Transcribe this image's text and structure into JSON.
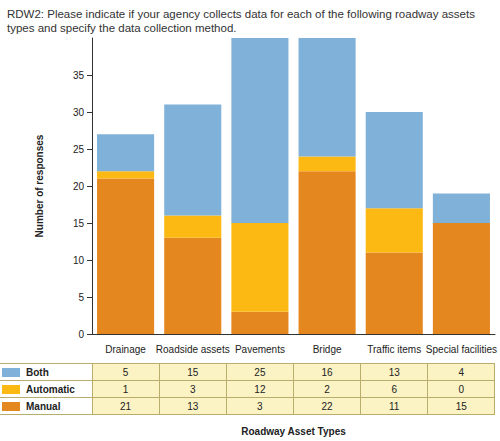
{
  "chart_data": {
    "type": "bar",
    "title": "RDW2: Please indicate if your agency collects data for each of the following roadway assets types and specify the data collection method.",
    "x_label": "Roadway Asset Types",
    "y_label": "Number of responses",
    "categories": [
      "Drainage",
      "Roadside assets",
      "Pavements",
      "Bridge",
      "Traffic items",
      "Special facilities"
    ],
    "series": [
      {
        "name": "Manual",
        "color": "#e5871f",
        "values": [
          21,
          13,
          3,
          22,
          11,
          15
        ]
      },
      {
        "name": "Automatic",
        "color": "#fdb913",
        "values": [
          1,
          3,
          12,
          2,
          6,
          0
        ]
      },
      {
        "name": "Both",
        "color": "#80b1d8",
        "values": [
          5,
          15,
          25,
          16,
          13,
          4
        ]
      }
    ],
    "stacked": true,
    "ylim": [
      0,
      40
    ],
    "yticks": [
      0,
      5,
      10,
      15,
      20,
      25,
      30,
      35
    ],
    "grid": false
  }
}
